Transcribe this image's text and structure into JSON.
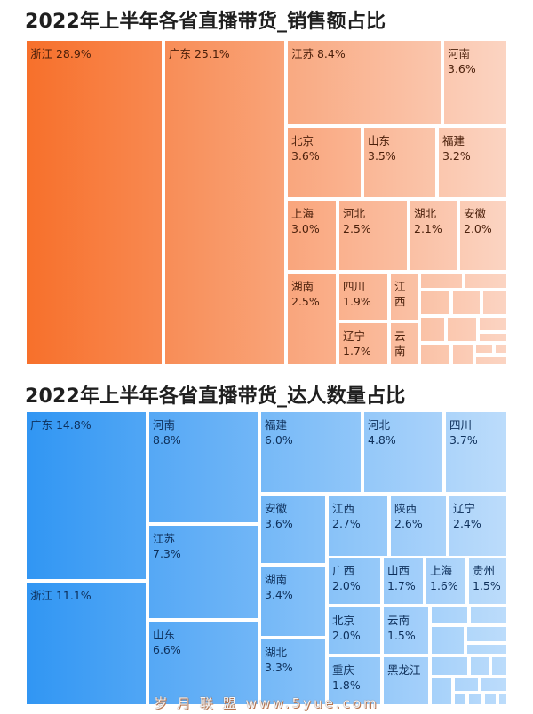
{
  "charts": [
    {
      "title": "2022年上半年各省直播带货_销售额占比",
      "chart_data": {
        "type": "treemap",
        "title": "2022年上半年各省直播带货_销售额占比",
        "unit": "%",
        "color_start": "#f76b24",
        "color_end": "#fbd4c2",
        "items": [
          {
            "name": "浙江",
            "value": 28.9
          },
          {
            "name": "广东",
            "value": 25.1
          },
          {
            "name": "江苏",
            "value": 8.4
          },
          {
            "name": "河南",
            "value": 3.6
          },
          {
            "name": "北京",
            "value": 3.6
          },
          {
            "name": "山东",
            "value": 3.5
          },
          {
            "name": "福建",
            "value": 3.2
          },
          {
            "name": "上海",
            "value": 3.0
          },
          {
            "name": "河北",
            "value": 2.5
          },
          {
            "name": "湖北",
            "value": 2.1
          },
          {
            "name": "安徽",
            "value": 2.0
          },
          {
            "name": "湖南",
            "value": 2.5
          },
          {
            "name": "四川",
            "value": 1.9
          },
          {
            "name": "辽宁",
            "value": 1.7
          },
          {
            "name": "江西",
            "value": null
          },
          {
            "name": "云南",
            "value": null
          }
        ]
      }
    },
    {
      "title": "2022年上半年各省直播带货_达人数量占比",
      "chart_data": {
        "type": "treemap",
        "title": "2022年上半年各省直播带货_达人数量占比",
        "unit": "%",
        "color_start": "#2b93f3",
        "color_end": "#bcdcfb",
        "items": [
          {
            "name": "广东",
            "value": 14.8
          },
          {
            "name": "浙江",
            "value": 11.1
          },
          {
            "name": "河南",
            "value": 8.8
          },
          {
            "name": "江苏",
            "value": 7.3
          },
          {
            "name": "山东",
            "value": 6.6
          },
          {
            "name": "福建",
            "value": 6.0
          },
          {
            "name": "河北",
            "value": 4.8
          },
          {
            "name": "四川",
            "value": 3.7
          },
          {
            "name": "安徽",
            "value": 3.6
          },
          {
            "name": "江西",
            "value": 2.7
          },
          {
            "name": "陕西",
            "value": 2.6
          },
          {
            "name": "辽宁",
            "value": 2.4
          },
          {
            "name": "湖南",
            "value": 3.4
          },
          {
            "name": "广西",
            "value": 2.0
          },
          {
            "name": "山西",
            "value": 1.7
          },
          {
            "name": "上海",
            "value": 1.6
          },
          {
            "name": "贵州",
            "value": 1.5
          },
          {
            "name": "湖北",
            "value": 3.3
          },
          {
            "name": "北京",
            "value": 2.0
          },
          {
            "name": "云南",
            "value": 1.5
          },
          {
            "name": "重庆",
            "value": 1.8
          },
          {
            "name": "黑龙江",
            "value": null
          }
        ]
      }
    }
  ],
  "footer": "岁 月 联 盟   www.5yue.com"
}
